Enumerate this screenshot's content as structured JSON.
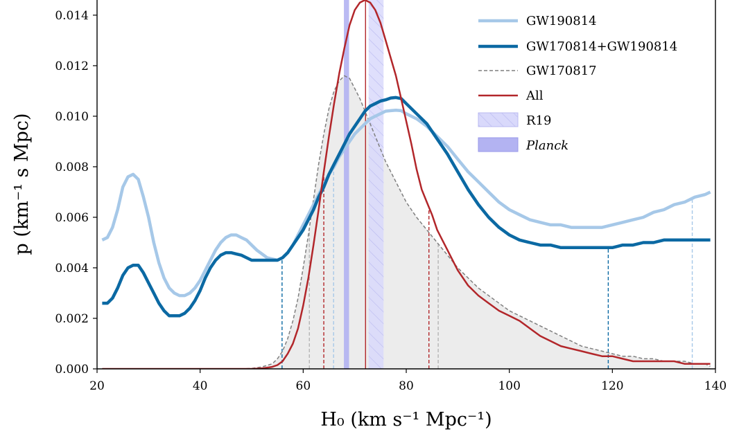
{
  "chart_data": {
    "type": "line",
    "xlabel": "H₀ (km s⁻¹ Mpc⁻¹)",
    "ylabel": "p (km⁻¹ s Mpc)",
    "xlim": [
      20,
      140
    ],
    "ylim": [
      0,
      0.0146
    ],
    "x_ticks": [
      "20",
      "40",
      "60",
      "80",
      "100",
      "120",
      "140"
    ],
    "y_ticks": [
      "0.000",
      "0.002",
      "0.004",
      "0.006",
      "0.008",
      "0.010",
      "0.012",
      "0.014"
    ],
    "grid": false,
    "legend_position": "top-right",
    "legend": [
      "GW190814",
      "GW170814+GW190814",
      "GW170817",
      "All",
      "R19",
      "Planck"
    ],
    "colors": {
      "gw190814": "#a6c8e8",
      "gw170814_gw190814": "#0b69a3",
      "gw170817": "#7f7f7f",
      "gw170817_fill": "#ececec",
      "all": "#b2262a",
      "r19": "#d9d9fb",
      "planck": "#b3b3f2"
    },
    "bands": {
      "r19": [
        72.7,
        75.6
      ],
      "planck": [
        67.9,
        68.9
      ]
    },
    "series": [
      {
        "name": "GW190814",
        "style": "thick-light",
        "x": [
          21,
          22,
          23,
          24,
          25,
          26,
          27,
          28,
          29,
          30,
          31,
          32,
          33,
          34,
          35,
          36,
          37,
          38,
          39,
          40,
          41,
          42,
          43,
          44,
          45,
          46,
          47,
          48,
          49,
          50,
          51,
          52,
          53,
          54,
          55,
          56,
          57,
          58,
          59,
          60,
          61,
          62,
          63,
          64,
          65,
          66,
          67,
          68,
          69,
          70,
          71,
          72,
          73,
          74,
          75,
          76,
          77,
          78,
          79,
          80,
          82,
          84,
          86,
          88,
          90,
          92,
          94,
          96,
          98,
          100,
          102,
          104,
          106,
          108,
          110,
          112,
          114,
          116,
          118,
          120,
          122,
          124,
          126,
          128,
          130,
          132,
          134,
          136,
          138,
          139
        ],
        "y": [
          0.0051,
          0.0052,
          0.0056,
          0.0063,
          0.0072,
          0.0076,
          0.0077,
          0.0075,
          0.0068,
          0.006,
          0.005,
          0.0042,
          0.0036,
          0.0032,
          0.003,
          0.0029,
          0.0029,
          0.003,
          0.0032,
          0.0035,
          0.0039,
          0.0043,
          0.0047,
          0.005,
          0.0052,
          0.0053,
          0.0053,
          0.0052,
          0.0051,
          0.0049,
          0.0047,
          0.00455,
          0.0044,
          0.00435,
          0.0043,
          0.0044,
          0.0046,
          0.0049,
          0.0053,
          0.0057,
          0.0061,
          0.0065,
          0.0069,
          0.0073,
          0.0077,
          0.008,
          0.0084,
          0.0087,
          0.009,
          0.0093,
          0.0095,
          0.0097,
          0.0099,
          0.01,
          0.0101,
          0.0102,
          0.01022,
          0.01024,
          0.01022,
          0.0101,
          0.0099,
          0.0096,
          0.0092,
          0.0088,
          0.0083,
          0.0078,
          0.0074,
          0.007,
          0.0066,
          0.0063,
          0.0061,
          0.0059,
          0.0058,
          0.0057,
          0.0057,
          0.0056,
          0.0056,
          0.0056,
          0.0056,
          0.0057,
          0.0058,
          0.0059,
          0.006,
          0.0062,
          0.0063,
          0.0065,
          0.0066,
          0.0068,
          0.0069,
          0.007
        ]
      },
      {
        "name": "GW170814+GW190814",
        "style": "thick-dark",
        "x": [
          21,
          22,
          23,
          24,
          25,
          26,
          27,
          28,
          29,
          30,
          31,
          32,
          33,
          34,
          35,
          36,
          37,
          38,
          39,
          40,
          41,
          42,
          43,
          44,
          45,
          46,
          47,
          48,
          49,
          50,
          51,
          52,
          53,
          54,
          55,
          56,
          57,
          58,
          59,
          60,
          61,
          62,
          63,
          64,
          65,
          66,
          67,
          68,
          69,
          70,
          71,
          72,
          73,
          74,
          75,
          76,
          77,
          78,
          79,
          80,
          82,
          84,
          86,
          88,
          90,
          92,
          94,
          96,
          98,
          100,
          102,
          104,
          106,
          108,
          110,
          112,
          114,
          116,
          118,
          120,
          122,
          124,
          126,
          128,
          130,
          132,
          134,
          136,
          138,
          139
        ],
        "y": [
          0.0026,
          0.0026,
          0.0028,
          0.0032,
          0.0037,
          0.004,
          0.0041,
          0.0041,
          0.0038,
          0.0034,
          0.003,
          0.0026,
          0.0023,
          0.0021,
          0.0021,
          0.0021,
          0.0022,
          0.0024,
          0.0027,
          0.0031,
          0.0036,
          0.004,
          0.0043,
          0.0045,
          0.0046,
          0.0046,
          0.00455,
          0.0045,
          0.0044,
          0.0043,
          0.0043,
          0.0043,
          0.0043,
          0.0043,
          0.0043,
          0.0044,
          0.0046,
          0.0049,
          0.0052,
          0.0055,
          0.0059,
          0.0063,
          0.0068,
          0.0072,
          0.0077,
          0.0081,
          0.0085,
          0.0089,
          0.0093,
          0.0096,
          0.0099,
          0.0102,
          0.0104,
          0.0105,
          0.0106,
          0.01065,
          0.01072,
          0.01074,
          0.0107,
          0.0105,
          0.0101,
          0.0097,
          0.0091,
          0.0085,
          0.0078,
          0.0071,
          0.0065,
          0.006,
          0.0056,
          0.0053,
          0.0051,
          0.005,
          0.0049,
          0.0049,
          0.0048,
          0.0048,
          0.0048,
          0.0048,
          0.0048,
          0.0048,
          0.0049,
          0.0049,
          0.005,
          0.005,
          0.0051,
          0.0051,
          0.0051,
          0.0051,
          0.0051,
          0.0051
        ]
      },
      {
        "name": "GW170817",
        "style": "dashed-fill",
        "x": [
          21,
          30,
          40,
          48,
          50,
          52,
          54,
          55,
          56,
          57,
          58,
          59,
          60,
          61,
          62,
          63,
          64,
          65,
          66,
          67,
          68,
          69,
          70,
          71,
          72,
          73,
          74,
          75,
          76,
          77,
          78,
          80,
          82,
          84,
          86,
          88,
          90,
          92,
          94,
          96,
          98,
          100,
          102,
          104,
          106,
          108,
          110,
          112,
          114,
          116,
          118,
          120,
          122,
          124,
          126,
          128,
          130,
          132,
          134,
          136,
          138,
          139
        ],
        "y": [
          0,
          0,
          0,
          0,
          2e-05,
          8e-05,
          0.0002,
          0.0004,
          0.0007,
          0.0012,
          0.0019,
          0.0028,
          0.004,
          0.0053,
          0.0067,
          0.0081,
          0.0093,
          0.0103,
          0.011,
          0.0114,
          0.0116,
          0.0115,
          0.0111,
          0.0107,
          0.0102,
          0.0097,
          0.0092,
          0.0087,
          0.0082,
          0.0078,
          0.0074,
          0.0066,
          0.006,
          0.0055,
          0.005,
          0.0045,
          0.004,
          0.0036,
          0.0032,
          0.0029,
          0.0026,
          0.0023,
          0.0021,
          0.0019,
          0.0017,
          0.0015,
          0.0013,
          0.0011,
          0.0009,
          0.0008,
          0.0007,
          0.0006,
          0.0005,
          0.0005,
          0.0004,
          0.0004,
          0.0003,
          0.0003,
          0.0003,
          0.0002,
          0.0002,
          0.0001
        ]
      },
      {
        "name": "All",
        "style": "solid-red",
        "x": [
          21,
          30,
          40,
          50,
          52,
          54,
          55,
          56,
          57,
          58,
          59,
          60,
          61,
          62,
          63,
          64,
          65,
          66,
          67,
          68,
          69,
          70,
          71,
          72,
          73,
          74,
          75,
          76,
          77,
          78,
          79,
          80,
          81,
          82,
          83,
          84,
          85,
          86,
          88,
          90,
          92,
          94,
          96,
          98,
          100,
          102,
          104,
          106,
          108,
          110,
          112,
          114,
          116,
          118,
          120,
          122,
          124,
          126,
          128,
          130,
          132,
          134,
          136,
          138,
          139
        ],
        "y": [
          0,
          0,
          0,
          0,
          2e-05,
          8e-05,
          0.00015,
          0.0003,
          0.0006,
          0.001,
          0.0016,
          0.0025,
          0.0036,
          0.0049,
          0.0063,
          0.0078,
          0.0092,
          0.0105,
          0.0117,
          0.0127,
          0.0136,
          0.0142,
          0.0145,
          0.0146,
          0.0145,
          0.0142,
          0.0137,
          0.013,
          0.0123,
          0.0116,
          0.0107,
          0.0098,
          0.0089,
          0.0079,
          0.0071,
          0.0066,
          0.0061,
          0.0055,
          0.0047,
          0.0039,
          0.0033,
          0.0029,
          0.0026,
          0.0023,
          0.0021,
          0.0019,
          0.0016,
          0.0013,
          0.0011,
          0.0009,
          0.0008,
          0.0007,
          0.0006,
          0.0005,
          0.0005,
          0.0004,
          0.0003,
          0.0003,
          0.0003,
          0.0003,
          0.0003,
          0.0002,
          0.0002,
          0.0002,
          0.0002
        ]
      }
    ],
    "credible_interval_lines": [
      {
        "series": "GW170814+GW190814",
        "x": [
          55.9,
          119.2
        ]
      },
      {
        "series": "GW190814",
        "x": [
          65.9,
          135.5
        ]
      },
      {
        "series": "GW170817",
        "x": [
          61.2,
          86.2
        ]
      },
      {
        "series": "All",
        "x": [
          64.0,
          84.4
        ]
      }
    ],
    "median_lines": [
      {
        "series": "All",
        "x": 72.1
      }
    ]
  }
}
